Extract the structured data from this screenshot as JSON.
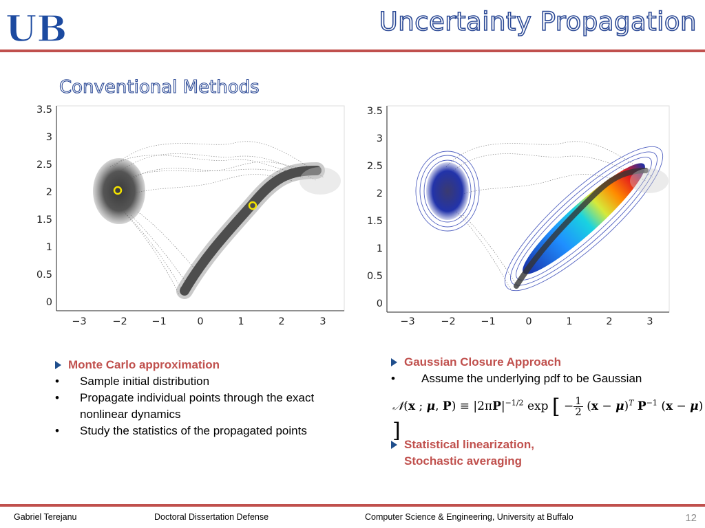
{
  "header": {
    "title": "Uncertainty Propagation",
    "subtitle": "Conventional Methods",
    "logo_text": "UB",
    "accent": "#c0504d",
    "title_color": "#2c4a96"
  },
  "chart_data": [
    {
      "type": "scatter",
      "title": "",
      "xlabel": "",
      "ylabel": "",
      "xlim": [
        -3.5,
        3.5
      ],
      "ylim": [
        0,
        3.5
      ],
      "x_ticks": [
        "−3",
        "−2",
        "−1",
        "0",
        "1",
        "2",
        "3"
      ],
      "y_ticks": [
        "0",
        "0.5",
        "1",
        "1.5",
        "2",
        "2.5",
        "3",
        "3.5"
      ],
      "initial_mean": [
        -2,
        2
      ],
      "propagated_mean": [
        1.3,
        1.75
      ]
    },
    {
      "type": "scatter",
      "title": "",
      "xlabel": "",
      "ylabel": "",
      "xlim": [
        -3.5,
        3.5
      ],
      "ylim": [
        0,
        3.5
      ],
      "x_ticks": [
        "−3",
        "−2",
        "−1",
        "0",
        "1",
        "2",
        "3"
      ],
      "y_ticks": [
        "0",
        "0.5",
        "1",
        "1.5",
        "2",
        "2.5",
        "3",
        "3.5"
      ],
      "overlay": "gaussian contours"
    }
  ],
  "left_block": {
    "heading": "Monte Carlo approximation",
    "items": [
      "Sample initial distribution",
      "Propagate individual points through the exact nonlinear dynamics",
      "Study the statistics of the propagated points"
    ]
  },
  "right_block": {
    "heading": "Gaussian Closure Approach",
    "item": "Assume the underlying pdf to be Gaussian",
    "heading2_line1": "Statistical linearization,",
    "heading2_line2": "Stochastic averaging"
  },
  "footer": {
    "author": "Gabriel Terejanu",
    "event": "Doctoral Dissertation Defense",
    "dept": "Computer Science & Engineering, University at Buffalo",
    "page": "12"
  },
  "bullet": "•"
}
